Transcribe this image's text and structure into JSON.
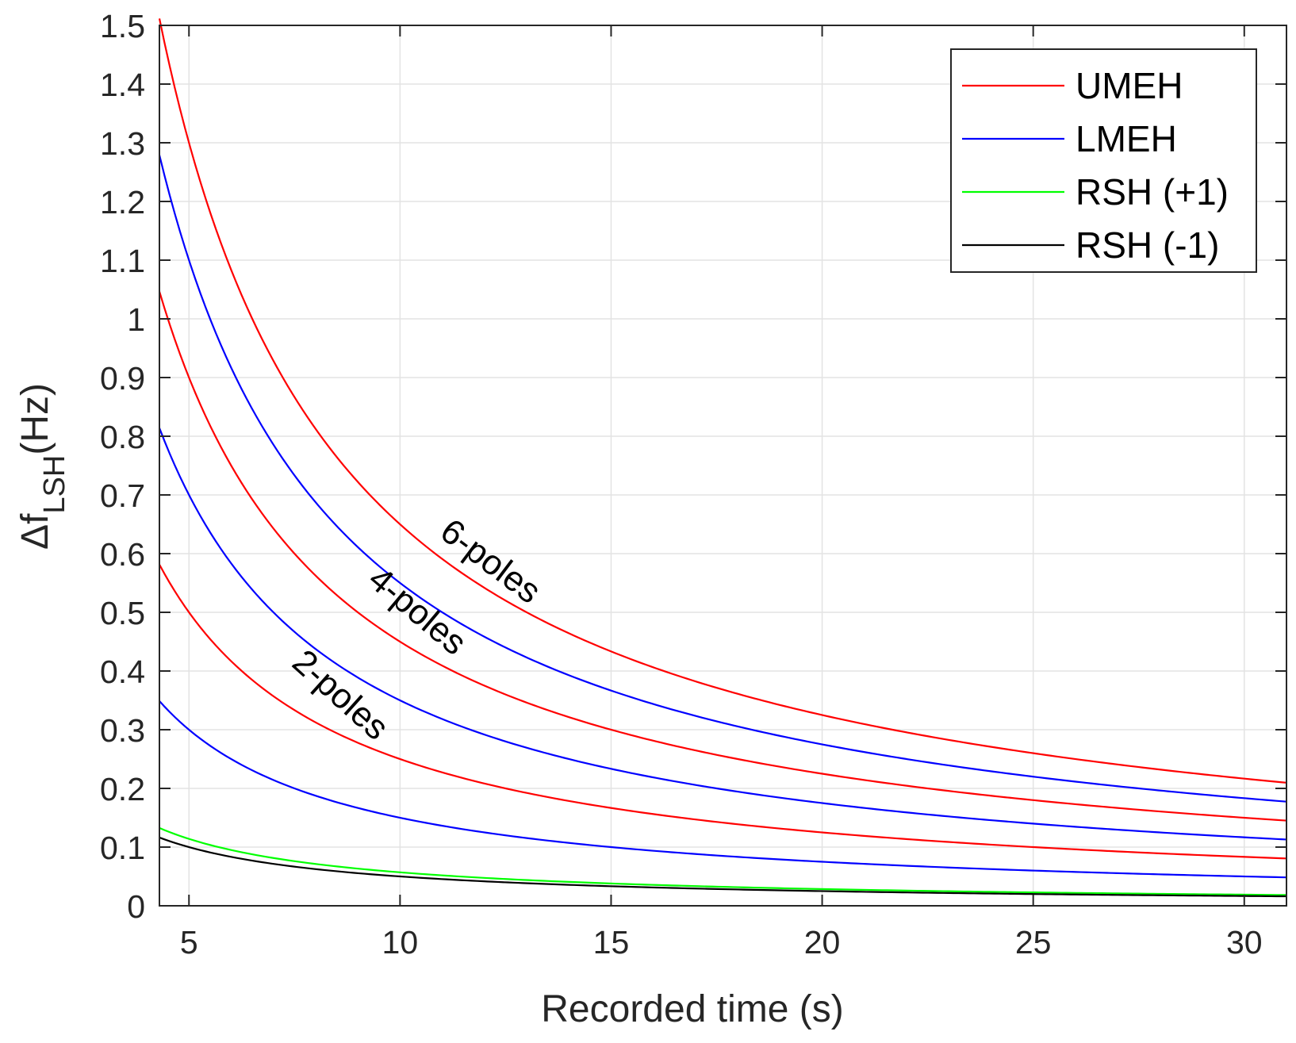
{
  "chart_data": {
    "type": "line",
    "xlabel": "Recorded time (s)",
    "ylabel": {
      "main": "Δf",
      "sub": "LSH",
      "unit": "(Hz)"
    },
    "xlim": [
      4.3,
      31.0
    ],
    "ylim": [
      0,
      1.5
    ],
    "xticks": [
      5,
      10,
      15,
      20,
      25,
      30
    ],
    "yticks": [
      0,
      0.1,
      0.2,
      0.3,
      0.4,
      0.5,
      0.6,
      0.7,
      0.8,
      0.9,
      1,
      1.1,
      1.2,
      1.3,
      1.4,
      1.5
    ],
    "x_tick_labels": [
      "5",
      "10",
      "15",
      "20",
      "25",
      "30"
    ],
    "y_tick_labels": [
      "0",
      "0.1",
      "0.2",
      "0.3",
      "0.4",
      "0.5",
      "0.6",
      "0.7",
      "0.8",
      "0.9",
      "1",
      "1.1",
      "1.2",
      "1.3",
      "1.4",
      "1.5"
    ],
    "grid": true,
    "legend_position": "top-right",
    "legend": [
      {
        "label": "UMEH",
        "color": "#ff0000"
      },
      {
        "label": "LMEH",
        "color": "#0000ff"
      },
      {
        "label": "RSH (+1)",
        "color": "#00ff00"
      },
      {
        "label": "RSH (-1)",
        "color": "#000000"
      }
    ],
    "model": "value = k / recorded_time",
    "series": [
      {
        "name": "UMEH",
        "group": "6-poles",
        "color": "#ff0000",
        "k": 6.5
      },
      {
        "name": "LMEH",
        "group": "6-poles",
        "color": "#0000ff",
        "k": 5.5
      },
      {
        "name": "UMEH",
        "group": "4-poles",
        "color": "#ff0000",
        "k": 4.5
      },
      {
        "name": "LMEH",
        "group": "4-poles",
        "color": "#0000ff",
        "k": 3.5
      },
      {
        "name": "UMEH",
        "group": "2-poles",
        "color": "#ff0000",
        "k": 2.5
      },
      {
        "name": "LMEH",
        "group": "2-poles",
        "color": "#0000ff",
        "k": 1.5
      },
      {
        "name": "RSH (+1)",
        "color": "#00ff00",
        "k": 0.57
      },
      {
        "name": "RSH (-1)",
        "color": "#000000",
        "k": 0.5
      }
    ],
    "annotations": [
      {
        "text": "6-poles",
        "x": 10.9,
        "y": 0.63,
        "angle": 37
      },
      {
        "text": "4-poles",
        "x": 9.2,
        "y": 0.55,
        "angle": 40
      },
      {
        "text": "2-poles",
        "x": 7.4,
        "y": 0.41,
        "angle": 42
      }
    ]
  }
}
